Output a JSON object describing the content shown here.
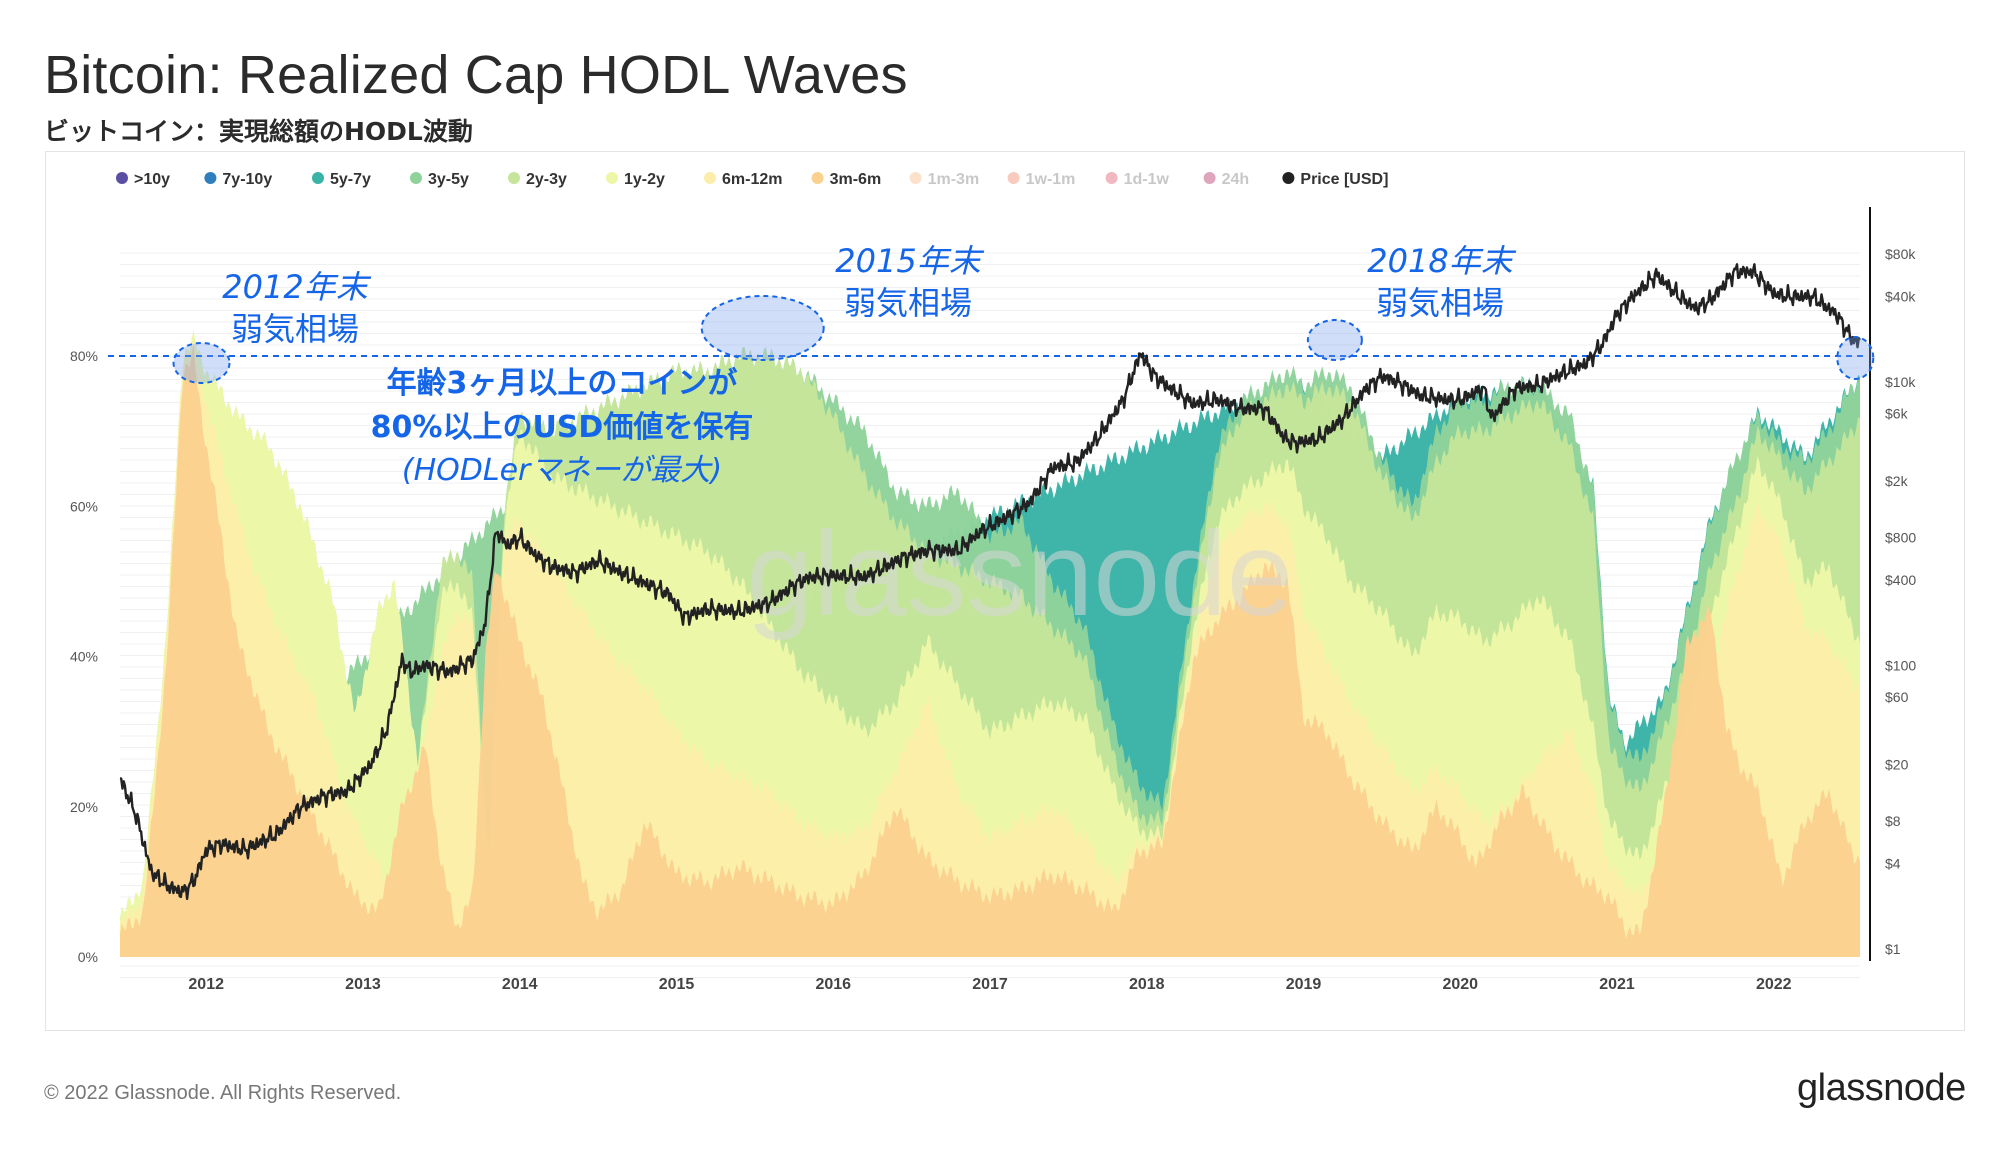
{
  "header": {
    "title": "Bitcoin: Realized Cap HODL Waves",
    "subtitle": "ビットコイン：実現総額のHODL波動"
  },
  "footer": {
    "copyright": "© 2022 Glassnode. All Rights Reserved.",
    "brand": "glassnode",
    "watermark": "glassnode"
  },
  "chart_data": {
    "type": "area",
    "title": "Bitcoin: Realized Cap HODL Waves",
    "x_range": [
      2011.45,
      2022.55
    ],
    "x_ticks": [
      "2012",
      "2013",
      "2014",
      "2015",
      "2016",
      "2017",
      "2018",
      "2019",
      "2020",
      "2021",
      "2022"
    ],
    "x_tick_values": [
      2012,
      2013,
      2014,
      2015,
      2016,
      2017,
      2018,
      2019,
      2020,
      2021,
      2022
    ],
    "y_left": {
      "range": [
        0,
        100
      ],
      "ticks": [
        0,
        20,
        40,
        60,
        80
      ],
      "tick_labels": [
        "0%",
        "20%",
        "40%",
        "60%",
        "80%"
      ]
    },
    "y_right": {
      "scale": "log",
      "range": [
        1,
        200000
      ],
      "ticks": [
        1,
        4,
        8,
        20,
        60,
        100,
        400,
        800,
        2000,
        6000,
        10000,
        40000,
        80000
      ],
      "tick_labels": [
        "$1",
        "$4",
        "$8",
        "$20",
        "$60",
        "$100",
        "$400",
        "$800",
        "$2k",
        "$6k",
        "$10k",
        "$40k",
        "$80k"
      ]
    },
    "legend": [
      {
        "name": ">10y",
        "color": "#5b4fa3",
        "active": true
      },
      {
        "name": "7y-10y",
        "color": "#2f7fbf",
        "active": true
      },
      {
        "name": "5y-7y",
        "color": "#39b3a6",
        "active": true
      },
      {
        "name": "3y-5y",
        "color": "#8fd39b",
        "active": true
      },
      {
        "name": "2y-3y",
        "color": "#c5e59a",
        "active": true
      },
      {
        "name": "1y-2y",
        "color": "#eef7a8",
        "active": true
      },
      {
        "name": "6m-12m",
        "color": "#fbeeaa",
        "active": true
      },
      {
        "name": "3m-6m",
        "color": "#fbd190",
        "active": true
      },
      {
        "name": "1m-3m",
        "color": "#f7a86a",
        "active": false
      },
      {
        "name": "1w-1m",
        "color": "#ee6a45",
        "active": false
      },
      {
        "name": "1d-1w",
        "color": "#d6334c",
        "active": false
      },
      {
        "name": "24h",
        "color": "#9e0142",
        "active": false
      },
      {
        "name": "Price [USD]",
        "color": "#222222",
        "active": true
      }
    ],
    "threshold_percent": 80,
    "series": [
      {
        "name": "3m-6m",
        "x": [
          2011.45,
          2011.6,
          2011.75,
          2011.85,
          2011.92,
          2011.97,
          2012.05,
          2012.2,
          2012.4,
          2012.6,
          2012.8,
          2012.95,
          2013.1,
          2013.25,
          2013.4,
          2013.5,
          2013.6,
          2013.7,
          2013.78,
          2013.85,
          2014.0,
          2014.15,
          2014.3,
          2014.4,
          2014.5,
          2014.65,
          2014.8,
          2015.0,
          2015.2,
          2015.4,
          2015.6,
          2015.8,
          2016.0,
          2016.2,
          2016.4,
          2016.6,
          2016.8,
          2017.0,
          2017.2,
          2017.4,
          2017.6,
          2017.8,
          2017.95,
          2018.1,
          2018.3,
          2018.45,
          2018.6,
          2018.75,
          2018.9,
          2019.0,
          2019.15,
          2019.3,
          2019.5,
          2019.7,
          2019.85,
          2020.0,
          2020.1,
          2020.25,
          2020.4,
          2020.6,
          2020.8,
          2020.95,
          2021.05,
          2021.15,
          2021.3,
          2021.45,
          2021.6,
          2021.7,
          2021.8,
          2021.9,
          2022.05,
          2022.2,
          2022.35,
          2022.5,
          2022.55
        ],
        "values": [
          3,
          6,
          40,
          78,
          80,
          72,
          62,
          42,
          30,
          22,
          14,
          8,
          6,
          20,
          28,
          12,
          4,
          8,
          40,
          52,
          42,
          34,
          20,
          10,
          6,
          9,
          18,
          11,
          10,
          12,
          10,
          8,
          7,
          11,
          20,
          13,
          10,
          8,
          9,
          11,
          9,
          6,
          14,
          15,
          40,
          45,
          48,
          52,
          50,
          32,
          30,
          24,
          18,
          14,
          20,
          16,
          12,
          18,
          22,
          15,
          10,
          8,
          4,
          3,
          20,
          42,
          46,
          30,
          25,
          22,
          10,
          18,
          22,
          14,
          13
        ]
      },
      {
        "name": "6m-12m",
        "x": [
          2011.45,
          2011.6,
          2011.75,
          2011.85,
          2011.92,
          2012.0,
          2012.1,
          2012.3,
          2012.5,
          2012.7,
          2012.9,
          2013.05,
          2013.2,
          2013.35,
          2013.5,
          2013.6,
          2013.7,
          2013.8,
          2013.9,
          2014.0,
          2014.2,
          2014.4,
          2014.6,
          2014.8,
          2015.0,
          2015.2,
          2015.4,
          2015.6,
          2015.8,
          2016.0,
          2016.2,
          2016.4,
          2016.6,
          2016.8,
          2017.0,
          2017.2,
          2017.4,
          2017.6,
          2017.8,
          2017.95,
          2018.1,
          2018.3,
          2018.45,
          2018.6,
          2018.75,
          2018.9,
          2019.0,
          2019.15,
          2019.3,
          2019.5,
          2019.7,
          2019.85,
          2020.0,
          2020.15,
          2020.3,
          2020.5,
          2020.7,
          2020.85,
          2020.95,
          2021.05,
          2021.15,
          2021.3,
          2021.45,
          2021.6,
          2021.75,
          2021.9,
          2022.05,
          2022.2,
          2022.35,
          2022.5,
          2022.55
        ],
        "values": [
          4,
          8,
          42,
          80,
          81,
          74,
          66,
          52,
          42,
          34,
          20,
          14,
          8,
          24,
          40,
          46,
          44,
          10,
          56,
          58,
          52,
          46,
          40,
          36,
          30,
          26,
          24,
          22,
          18,
          16,
          17,
          25,
          34,
          22,
          16,
          18,
          20,
          16,
          10,
          15,
          16,
          42,
          54,
          58,
          60,
          58,
          46,
          40,
          34,
          28,
          22,
          25,
          22,
          18,
          20,
          26,
          30,
          22,
          12,
          10,
          8,
          16,
          26,
          38,
          50,
          60,
          55,
          44,
          42,
          37,
          36
        ]
      },
      {
        "name": "1y-2y",
        "x": [
          2011.45,
          2011.6,
          2011.75,
          2011.85,
          2011.92,
          2012.0,
          2012.2,
          2012.4,
          2012.6,
          2012.8,
          2012.95,
          2013.1,
          2013.2,
          2013.35,
          2013.5,
          2013.6,
          2013.7,
          2013.8,
          2013.9,
          2014.0,
          2014.2,
          2014.4,
          2014.6,
          2014.8,
          2015.0,
          2015.2,
          2015.4,
          2015.6,
          2015.8,
          2016.0,
          2016.2,
          2016.4,
          2016.6,
          2016.8,
          2017.0,
          2017.2,
          2017.4,
          2017.6,
          2017.8,
          2017.95,
          2018.1,
          2018.3,
          2018.45,
          2018.6,
          2018.75,
          2018.9,
          2019.0,
          2019.15,
          2019.3,
          2019.5,
          2019.7,
          2019.85,
          2020.0,
          2020.15,
          2020.3,
          2020.5,
          2020.7,
          2020.85,
          2020.95,
          2021.05,
          2021.15,
          2021.3,
          2021.45,
          2021.6,
          2021.75,
          2021.9,
          2022.05,
          2022.2,
          2022.35,
          2022.5,
          2022.55
        ],
        "values": [
          5,
          10,
          44,
          80,
          82,
          78,
          72,
          68,
          60,
          48,
          32,
          46,
          50,
          26,
          48,
          50,
          45,
          12,
          58,
          70,
          64,
          62,
          60,
          58,
          56,
          54,
          50,
          44,
          38,
          34,
          30,
          34,
          42,
          36,
          30,
          32,
          34,
          32,
          22,
          17,
          16,
          44,
          58,
          62,
          64,
          66,
          60,
          56,
          50,
          46,
          40,
          46,
          45,
          42,
          44,
          48,
          42,
          30,
          18,
          15,
          13,
          22,
          32,
          46,
          56,
          66,
          60,
          50,
          52,
          44,
          42
        ]
      },
      {
        "name": "2y-3y",
        "x": [
          2011.45,
          2011.6,
          2011.75,
          2011.85,
          2011.92,
          2012.0,
          2012.2,
          2012.4,
          2012.6,
          2012.8,
          2012.95,
          2013.1,
          2013.2,
          2013.35,
          2013.5,
          2013.6,
          2013.7,
          2013.8,
          2013.9,
          2014.0,
          2014.2,
          2014.4,
          2014.6,
          2014.8,
          2015.0,
          2015.2,
          2015.4,
          2015.6,
          2015.8,
          2016.0,
          2016.2,
          2016.4,
          2016.6,
          2016.8,
          2017.0,
          2017.2,
          2017.4,
          2017.6,
          2017.8,
          2017.95,
          2018.1,
          2018.3,
          2018.45,
          2018.6,
          2018.75,
          2018.9,
          2019.0,
          2019.15,
          2019.3,
          2019.5,
          2019.7,
          2019.85,
          2020.0,
          2020.15,
          2020.3,
          2020.5,
          2020.7,
          2020.85,
          2020.95,
          2021.05,
          2021.15,
          2021.3,
          2021.45,
          2021.6,
          2021.75,
          2021.9,
          2022.05,
          2022.2,
          2022.35,
          2022.5,
          2022.55
        ],
        "values": [
          5,
          10,
          44,
          80,
          82,
          78,
          72,
          68,
          60,
          48,
          32,
          46,
          50,
          26,
          52,
          54,
          50,
          12,
          60,
          72,
          70,
          72,
          74,
          76,
          78,
          78,
          80,
          80,
          78,
          72,
          64,
          58,
          54,
          52,
          50,
          48,
          44,
          40,
          26,
          19,
          18,
          48,
          66,
          72,
          74,
          76,
          74,
          76,
          74,
          64,
          58,
          66,
          70,
          70,
          72,
          74,
          68,
          58,
          28,
          24,
          22,
          30,
          40,
          52,
          60,
          70,
          66,
          62,
          66,
          70,
          72
        ]
      },
      {
        "name": "3y-5y",
        "x": [
          2011.45,
          2013.9,
          2014.0,
          2014.2,
          2014.4,
          2014.6,
          2014.8,
          2015.0,
          2015.2,
          2015.4,
          2015.6,
          2015.8,
          2016.0,
          2016.2,
          2016.4,
          2016.6,
          2016.8,
          2017.0,
          2017.2,
          2017.4,
          2017.6,
          2017.8,
          2017.95,
          2018.1,
          2018.3,
          2018.45,
          2018.6,
          2018.75,
          2018.9,
          2019.0,
          2019.15,
          2019.3,
          2019.5,
          2019.7,
          2019.85,
          2020.0,
          2020.15,
          2020.3,
          2020.5,
          2020.7,
          2020.85,
          2020.95,
          2021.05,
          2021.15,
          2021.3,
          2021.45,
          2021.6,
          2021.75,
          2021.9,
          2022.05,
          2022.2,
          2022.35,
          2022.5,
          2022.55
        ],
        "values": [
          5,
          60,
          72,
          70,
          72,
          74,
          76,
          78,
          78,
          80,
          80,
          78,
          74,
          70,
          62,
          60,
          62,
          56,
          58,
          50,
          44,
          30,
          23,
          20,
          50,
          68,
          74,
          76,
          78,
          76,
          78,
          76,
          66,
          60,
          70,
          74,
          74,
          76,
          76,
          72,
          62,
          34,
          28,
          26,
          34,
          46,
          58,
          66,
          72,
          68,
          66,
          70,
          76,
          77
        ]
      },
      {
        "name": "5y-7y",
        "x": [
          2011.45,
          2018.6,
          2019.0,
          2019.5,
          2020.0,
          2020.5,
          2020.85,
          2020.95,
          2021.05,
          2021.3,
          2021.6,
          2021.9,
          2022.2,
          2022.55
        ],
        "values": [
          5,
          74,
          76.5,
          66.5,
          74.5,
          76.5,
          62.5,
          34.5,
          28.5,
          34.5,
          58.5,
          72.5,
          66.5,
          77.5
        ]
      }
    ],
    "price": {
      "x": [
        2011.45,
        2011.55,
        2011.65,
        2011.75,
        2011.85,
        2011.92,
        2012.0,
        2012.1,
        2012.25,
        2012.45,
        2012.6,
        2012.75,
        2012.9,
        2013.05,
        2013.15,
        2013.25,
        2013.3,
        2013.4,
        2013.55,
        2013.7,
        2013.78,
        2013.85,
        2013.92,
        2014.0,
        2014.1,
        2014.2,
        2014.35,
        2014.5,
        2014.65,
        2014.8,
        2014.95,
        2015.05,
        2015.2,
        2015.4,
        2015.6,
        2015.75,
        2015.85,
        2016.0,
        2016.2,
        2016.45,
        2016.6,
        2016.8,
        2016.95,
        2017.1,
        2017.25,
        2017.4,
        2017.55,
        2017.7,
        2017.85,
        2017.96,
        2018.05,
        2018.15,
        2018.3,
        2018.45,
        2018.6,
        2018.75,
        2018.88,
        2018.95,
        2019.1,
        2019.25,
        2019.4,
        2019.5,
        2019.6,
        2019.75,
        2019.9,
        2020.0,
        2020.15,
        2020.2,
        2020.35,
        2020.5,
        2020.65,
        2020.8,
        2020.9,
        2021.0,
        2021.1,
        2021.25,
        2021.4,
        2021.5,
        2021.6,
        2021.75,
        2021.87,
        2022.0,
        2022.1,
        2022.25,
        2022.4,
        2022.5,
        2022.55
      ],
      "values": [
        16,
        9,
        3.5,
        2.8,
        2.5,
        3.0,
        5,
        5.5,
        5,
        6.5,
        10,
        12,
        13,
        20,
        35,
        110,
        90,
        100,
        90,
        110,
        200,
        900,
        700,
        800,
        600,
        500,
        450,
        550,
        450,
        380,
        320,
        220,
        250,
        240,
        280,
        370,
        420,
        430,
        420,
        580,
        650,
        650,
        900,
        1100,
        1400,
        2500,
        2700,
        4200,
        7500,
        16000,
        11000,
        9000,
        7000,
        7500,
        6500,
        6500,
        4000,
        3700,
        4000,
        5500,
        9000,
        11000,
        10000,
        8000,
        7500,
        7500,
        9000,
        5500,
        9000,
        9500,
        11500,
        13500,
        18000,
        30000,
        40000,
        57000,
        40000,
        33000,
        38000,
        60000,
        60000,
        42000,
        40000,
        40000,
        30000,
        20000,
        19000
      ]
    },
    "annotations": [
      {
        "label": "2012年末",
        "label2": "弱気相場",
        "x": 2011.97
      },
      {
        "label": "2015年末",
        "label2": "弱気相場",
        "x": 2015.55
      },
      {
        "label": "2018年末",
        "label2": "弱気相場",
        "x": 2019.2
      },
      {
        "label": "",
        "label2": "",
        "x": 2022.52
      }
    ],
    "callout": {
      "line1": "年齢3ヶ月以上のコインが",
      "line2": "80%以上のUSD価値を保有",
      "line3": "(HODLerマネーが最大)"
    }
  }
}
